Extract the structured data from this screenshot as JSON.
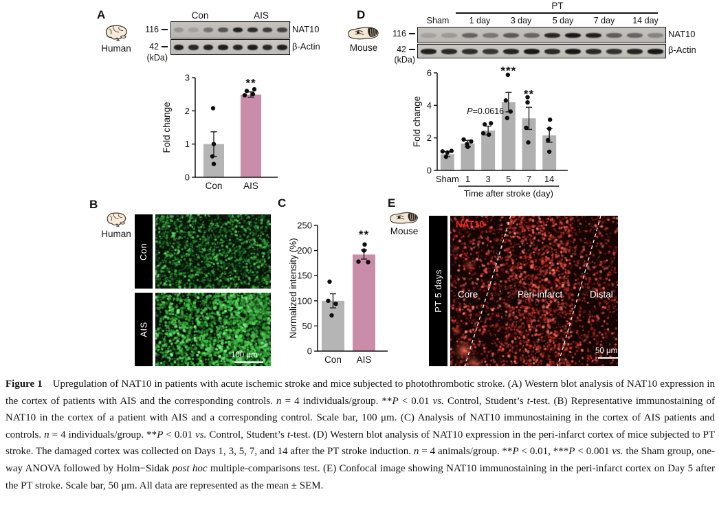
{
  "colors": {
    "bar_gray": "#b5b5b5",
    "bar_pink": "#c98ca9",
    "con_underline": "#9a9a9a",
    "ais_underline": "#f2aac9",
    "green_signal": "#45cc4a",
    "red_signal": "#e5392e"
  },
  "panels": {
    "a": {
      "label": "A",
      "species": "Human",
      "blot": {
        "groups": [
          {
            "label": "Con"
          },
          {
            "label": "AIS"
          }
        ],
        "markers": [
          "116",
          "42"
        ],
        "unit": "(kDa)",
        "proteins": [
          "NAT10",
          "β-Actin"
        ],
        "rows": [
          {
            "bands": [
              0.22,
              0.15,
              0.42,
              0.6,
              0.9,
              0.84,
              0.74,
              0.7
            ]
          },
          {
            "bands": [
              0.92,
              0.86,
              0.9,
              0.93,
              0.88,
              0.92,
              0.86,
              0.9
            ]
          }
        ]
      },
      "chart": {
        "type": "bar",
        "ylabel": "Fold change",
        "ylim": [
          0,
          3
        ],
        "yticks": [
          0,
          1,
          2,
          3
        ],
        "categories": [
          "Con",
          "AIS"
        ],
        "values": [
          1.0,
          2.49
        ],
        "errors": [
          0.37,
          0.08
        ],
        "bar_colors": [
          "#b5b5b5",
          "#c98ca9"
        ],
        "points": [
          [
            [
              -1,
              2.08
            ],
            [
              0,
              1.0
            ],
            [
              -2,
              0.63
            ],
            [
              0,
              0.4
            ]
          ],
          [
            [
              -6,
              2.6
            ],
            [
              5,
              2.65
            ],
            [
              -9,
              2.47
            ],
            [
              3,
              2.5
            ]
          ]
        ],
        "sig": [
          {
            "bar": 1,
            "text": "**",
            "y": 2.72
          }
        ]
      }
    },
    "b": {
      "label": "B",
      "species": "Human",
      "rows": [
        {
          "label": "Con"
        },
        {
          "label": "AIS"
        }
      ],
      "scale_bar": "100 μm"
    },
    "c": {
      "label": "C",
      "chart": {
        "type": "bar",
        "ylabel": "Normalized intensity (%)",
        "ylim": [
          0,
          250
        ],
        "yticks": [
          0,
          50,
          100,
          150,
          200,
          250
        ],
        "categories": [
          "Con",
          "AIS"
        ],
        "values": [
          100,
          192
        ],
        "errors": [
          14,
          9
        ],
        "bar_colors": [
          "#b5b5b5",
          "#c98ca9"
        ],
        "points": [
          [
            [
              -5,
              138
            ],
            [
              -7,
              100
            ],
            [
              4,
              94
            ],
            [
              -2,
              71
            ]
          ],
          [
            [
              1,
              212
            ],
            [
              0,
              200
            ],
            [
              -8,
              178
            ],
            [
              6,
              177
            ]
          ]
        ],
        "sig": [
          {
            "bar": 1,
            "text": "**",
            "y": 224
          }
        ]
      }
    },
    "d": {
      "label": "D",
      "species": "Mouse",
      "blot": {
        "bracket_label": "PT",
        "groups": [
          {
            "label": "Sham"
          },
          {
            "label": "1 day"
          },
          {
            "label": "3 day"
          },
          {
            "label": "5 day"
          },
          {
            "label": "7 day"
          },
          {
            "label": "14 day"
          }
        ],
        "markers": [
          "116",
          "42"
        ],
        "unit": "(kDa)",
        "proteins": [
          "NAT10",
          "β-Actin"
        ],
        "rows": [
          {
            "bands": [
              0.15,
              0.2,
              0.5,
              0.4,
              0.56,
              0.5,
              0.86,
              0.95,
              0.9,
              0.55,
              0.5,
              0.32
            ]
          },
          {
            "bands": [
              0.9,
              0.85,
              0.82,
              0.78,
              0.88,
              0.95,
              0.85,
              0.95,
              0.85,
              0.8,
              0.88,
              0.95
            ]
          }
        ]
      },
      "chart": {
        "type": "bar",
        "ylabel": "Fold change",
        "ylim": [
          0,
          6
        ],
        "yticks": [
          0,
          2,
          4,
          6
        ],
        "categories": [
          "Sham",
          "1",
          "3",
          "5",
          "7",
          "14"
        ],
        "values": [
          1.0,
          1.65,
          2.45,
          4.2,
          3.2,
          2.15
        ],
        "errors": [
          0.15,
          0.2,
          0.27,
          0.6,
          0.68,
          0.42
        ],
        "bar_color": "#b0b0b0",
        "points": [
          [
            [
              -7,
              1.17
            ],
            [
              0,
              1.1
            ],
            [
              6,
              1.2
            ],
            [
              -2,
              0.84
            ]
          ],
          [
            [
              -6,
              1.9
            ],
            [
              -1,
              1.62
            ],
            [
              5,
              1.78
            ],
            [
              0,
              1.45
            ]
          ],
          [
            [
              -5,
              2.83
            ],
            [
              4,
              2.9
            ],
            [
              -7,
              2.28
            ],
            [
              1,
              2.2
            ]
          ],
          [
            [
              -1,
              5.88
            ],
            [
              -4,
              4.3
            ],
            [
              3,
              3.62
            ],
            [
              -2,
              3.22
            ]
          ],
          [
            [
              -2,
              4.5
            ],
            [
              -2,
              4.18
            ],
            [
              -4,
              2.62
            ],
            [
              -1,
              1.72
            ]
          ],
          [
            [
              1,
              3.12
            ],
            [
              0,
              2.56
            ],
            [
              -2,
              1.86
            ],
            [
              0,
              1.15
            ]
          ]
        ],
        "sig": [
          {
            "bar": 3,
            "text": "***",
            "y": 5.9
          },
          {
            "bar": 4,
            "text": "**",
            "y": 4.45
          }
        ],
        "annotation": {
          "italic": "P",
          "text": "=0.0616",
          "bar": 2,
          "y": 3.47
        },
        "xlabel": "Time after stroke (day)",
        "bracket": {
          "from": 1,
          "to": 5
        }
      }
    },
    "e": {
      "label": "E",
      "species": "Mouse",
      "side_label": "PT 5 days",
      "stain_label": "NAT10",
      "regions": [
        "Core",
        "Peri-infarct",
        "Distal"
      ],
      "scale_bar": "50 μm"
    }
  },
  "chart_data": [
    {
      "panel": "A",
      "type": "bar",
      "categories": [
        "Con",
        "AIS"
      ],
      "values": [
        1.0,
        2.49
      ],
      "errors": [
        0.37,
        0.08
      ],
      "ylabel": "Fold change",
      "ylim": [
        0,
        3
      ],
      "points": {
        "Con": [
          2.08,
          1.0,
          0.63,
          0.4
        ],
        "AIS": [
          2.6,
          2.65,
          2.47,
          2.5
        ]
      },
      "significance": "** above AIS"
    },
    {
      "panel": "C",
      "type": "bar",
      "categories": [
        "Con",
        "AIS"
      ],
      "values": [
        100,
        192
      ],
      "errors": [
        14,
        9
      ],
      "ylabel": "Normalized intensity (%)",
      "ylim": [
        0,
        250
      ],
      "points": {
        "Con": [
          138,
          100,
          94,
          71
        ],
        "AIS": [
          212,
          200,
          178,
          177
        ]
      },
      "significance": "** above AIS"
    },
    {
      "panel": "D",
      "type": "bar",
      "categories": [
        "Sham",
        "1",
        "3",
        "5",
        "7",
        "14"
      ],
      "values": [
        1.0,
        1.65,
        2.45,
        4.2,
        3.2,
        2.15
      ],
      "errors": [
        0.15,
        0.2,
        0.27,
        0.6,
        0.68,
        0.42
      ],
      "ylabel": "Fold change",
      "xlabel": "Time after stroke (day)",
      "ylim": [
        0,
        6
      ],
      "annotations": [
        "P=0.0616 at day 3",
        "*** above day 5",
        "** above day 7"
      ]
    }
  ],
  "caption": {
    "segments": [
      {
        "b": true,
        "t": "Figure 1"
      },
      {
        "t": " Upregulation of NAT10 in patients with acute ischemic stroke and mice subjected to photothrombotic stroke. (A) Western blot analysis of NAT10 expression in the cortex of patients with AIS and the corresponding controls. "
      },
      {
        "i": true,
        "t": "n"
      },
      {
        "t": " = 4 individuals/group. **"
      },
      {
        "i": true,
        "t": "P"
      },
      {
        "t": " < 0.01 "
      },
      {
        "i": true,
        "t": "vs."
      },
      {
        "t": " Control, Student’s "
      },
      {
        "i": true,
        "t": "t"
      },
      {
        "t": "-test. (B) Representative immunostaining of NAT10 in the cortex of a patient with AIS and a corresponding control. Scale bar, 100 μm. (C) Analysis of NAT10 immunostaining in the cortex of AIS patients and controls. "
      },
      {
        "i": true,
        "t": "n"
      },
      {
        "t": " = 4 individuals/group. **"
      },
      {
        "i": true,
        "t": "P"
      },
      {
        "t": " < 0.01 "
      },
      {
        "i": true,
        "t": "vs."
      },
      {
        "t": " Control, Student’s "
      },
      {
        "i": true,
        "t": "t"
      },
      {
        "t": "-test. (D) Western blot analysis of NAT10 expression in the peri-infarct cortex of mice subjected to PT stroke. The damaged cortex was collected on Days 1, 3, 5, 7, and 14 after the PT stroke induction. "
      },
      {
        "i": true,
        "t": "n"
      },
      {
        "t": " = 4 animals/group. **"
      },
      {
        "i": true,
        "t": "P"
      },
      {
        "t": " < 0.01, ***"
      },
      {
        "i": true,
        "t": "P"
      },
      {
        "t": " < 0.001 "
      },
      {
        "i": true,
        "t": "vs."
      },
      {
        "t": " the Sham group, one-way ANOVA followed by Holm−Sidak "
      },
      {
        "i": true,
        "t": "post hoc"
      },
      {
        "t": " multiple-comparisons test. (E) Confocal image showing NAT10 immunostaining in the peri-infarct cortex on Day 5 after the PT stroke. Scale bar, 50 μm. All data are represented as the mean ± SEM."
      }
    ]
  }
}
